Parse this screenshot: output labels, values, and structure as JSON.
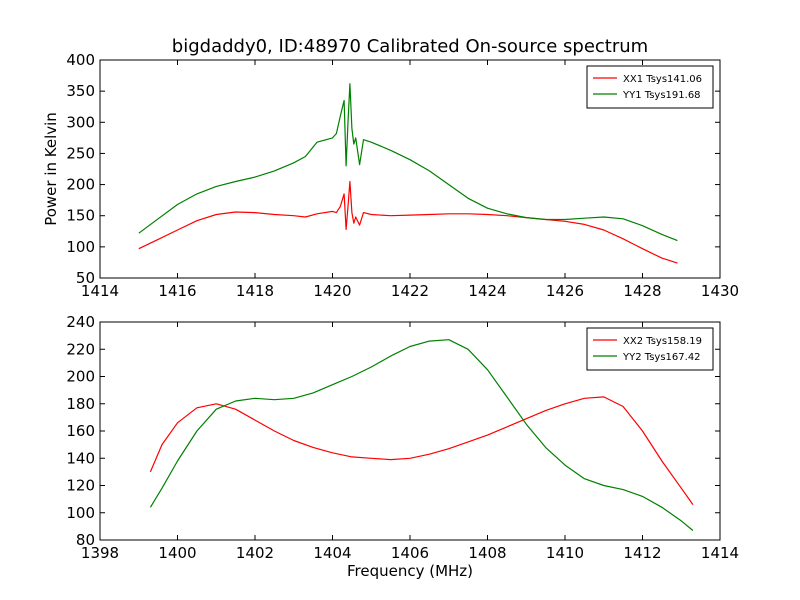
{
  "chart_data": [
    {
      "type": "line",
      "title": "bigdaddy0, ID:48970 Calibrated On-source spectrum",
      "xlabel": "",
      "ylabel": "Power in Kelvin",
      "xlim": [
        1414,
        1430
      ],
      "ylim": [
        50,
        400
      ],
      "xticks": [
        "1414",
        "1416",
        "1418",
        "1420",
        "1422",
        "1424",
        "1426",
        "1428",
        "1430"
      ],
      "yticks": [
        "50",
        "100",
        "150",
        "200",
        "250",
        "300",
        "350",
        "400"
      ],
      "grid": false,
      "legend_position": "top-right",
      "series": [
        {
          "name": "XX1 Tsys141.06",
          "color": "#ff0000",
          "x": [
            1415.0,
            1415.5,
            1416.0,
            1416.5,
            1417.0,
            1417.5,
            1418.0,
            1418.5,
            1419.0,
            1419.3,
            1419.6,
            1420.0,
            1420.1,
            1420.2,
            1420.3,
            1420.35,
            1420.4,
            1420.45,
            1420.5,
            1420.55,
            1420.6,
            1420.7,
            1420.8,
            1421.0,
            1421.5,
            1422.0,
            1422.5,
            1423.0,
            1423.5,
            1424.0,
            1424.5,
            1425.0,
            1425.5,
            1426.0,
            1426.5,
            1427.0,
            1427.5,
            1428.0,
            1428.5,
            1428.9
          ],
          "values": [
            97,
            112,
            127,
            142,
            152,
            156,
            155,
            152,
            150,
            148,
            153,
            157,
            155,
            165,
            185,
            128,
            165,
            205,
            155,
            138,
            148,
            135,
            155,
            152,
            150,
            151,
            152,
            153,
            153,
            152,
            150,
            147,
            144,
            141,
            136,
            127,
            113,
            97,
            82,
            74
          ]
        },
        {
          "name": "YY1 Tsys191.68",
          "color": "#008000",
          "x": [
            1415.0,
            1415.5,
            1416.0,
            1416.5,
            1417.0,
            1417.5,
            1418.0,
            1418.5,
            1419.0,
            1419.3,
            1419.6,
            1420.0,
            1420.1,
            1420.2,
            1420.3,
            1420.35,
            1420.4,
            1420.45,
            1420.5,
            1420.55,
            1420.6,
            1420.7,
            1420.8,
            1421.0,
            1421.5,
            1422.0,
            1422.5,
            1423.0,
            1423.5,
            1424.0,
            1424.5,
            1425.0,
            1425.5,
            1426.0,
            1426.5,
            1427.0,
            1427.5,
            1428.0,
            1428.5,
            1428.9
          ],
          "values": [
            122,
            145,
            168,
            185,
            197,
            205,
            212,
            222,
            235,
            245,
            268,
            275,
            282,
            310,
            335,
            230,
            300,
            362,
            290,
            265,
            275,
            232,
            272,
            268,
            255,
            240,
            222,
            200,
            178,
            162,
            153,
            147,
            144,
            144,
            146,
            148,
            145,
            134,
            120,
            110
          ]
        }
      ]
    },
    {
      "type": "line",
      "title": "",
      "xlabel": "Frequency (MHz)",
      "ylabel": "",
      "xlim": [
        1398,
        1414
      ],
      "ylim": [
        80,
        240
      ],
      "xticks": [
        "1398",
        "1400",
        "1402",
        "1404",
        "1406",
        "1408",
        "1410",
        "1412",
        "1414"
      ],
      "yticks": [
        "80",
        "100",
        "120",
        "140",
        "160",
        "180",
        "200",
        "220",
        "240"
      ],
      "grid": false,
      "legend_position": "top-right",
      "series": [
        {
          "name": "XX2 Tsys158.19",
          "color": "#ff0000",
          "x": [
            1399.3,
            1399.6,
            1400.0,
            1400.5,
            1401.0,
            1401.5,
            1402.0,
            1402.5,
            1403.0,
            1403.5,
            1404.0,
            1404.5,
            1405.0,
            1405.5,
            1406.0,
            1406.5,
            1407.0,
            1407.5,
            1408.0,
            1408.5,
            1409.0,
            1409.5,
            1410.0,
            1410.5,
            1411.0,
            1411.5,
            1412.0,
            1412.5,
            1413.0,
            1413.3
          ],
          "values": [
            130,
            150,
            166,
            177,
            180,
            176,
            168,
            160,
            153,
            148,
            144,
            141,
            140,
            139,
            140,
            143,
            147,
            152,
            157,
            163,
            169,
            175,
            180,
            184,
            185,
            178,
            160,
            138,
            118,
            106
          ]
        },
        {
          "name": "YY2 Tsys167.42",
          "color": "#008000",
          "x": [
            1399.3,
            1399.6,
            1400.0,
            1400.5,
            1401.0,
            1401.5,
            1402.0,
            1402.5,
            1403.0,
            1403.5,
            1404.0,
            1404.5,
            1405.0,
            1405.5,
            1406.0,
            1406.5,
            1407.0,
            1407.5,
            1408.0,
            1408.5,
            1409.0,
            1409.5,
            1410.0,
            1410.5,
            1411.0,
            1411.5,
            1412.0,
            1412.5,
            1413.0,
            1413.3
          ],
          "values": [
            104,
            118,
            138,
            160,
            176,
            182,
            184,
            183,
            184,
            188,
            194,
            200,
            207,
            215,
            222,
            226,
            227,
            220,
            205,
            185,
            165,
            148,
            135,
            125,
            120,
            117,
            112,
            104,
            94,
            87
          ]
        }
      ]
    }
  ]
}
